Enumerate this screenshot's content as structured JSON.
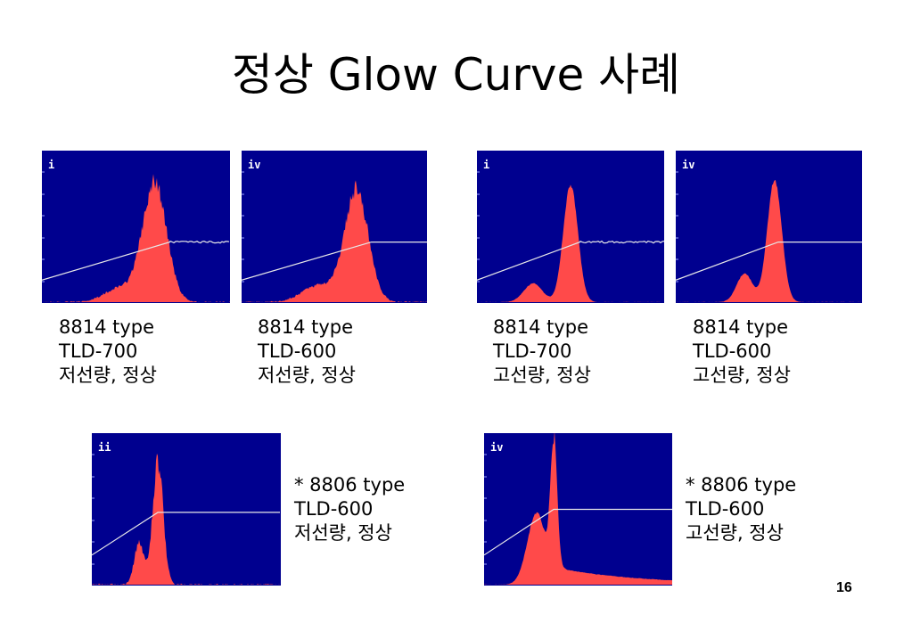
{
  "slide": {
    "title": "정상 Glow Curve 사례",
    "page_number": "16"
  },
  "colors": {
    "background": "#00008f",
    "curve_fill": "#ff4a4a",
    "temperature_line": "#e8e8e8",
    "panel_label": "#ffffff"
  },
  "chart_data": [
    {
      "type": "area",
      "panel_label": "i",
      "caption": [
        "8814 type",
        "TLD-700",
        "저선량, 정상"
      ],
      "dose": "low",
      "peaks": [
        {
          "x": 0.6,
          "height": 0.82,
          "width": 0.09
        },
        {
          "x": 0.42,
          "height": 0.1,
          "width": 0.12
        }
      ],
      "noise": 0.08,
      "temperature_ramp": {
        "start": 0.15,
        "plateau_x": 0.68,
        "plateau": 0.4
      },
      "line_wiggle": true
    },
    {
      "type": "area",
      "panel_label": "iv",
      "caption": [
        "8814 type",
        "TLD-600",
        "저선량, 정상"
      ],
      "dose": "low",
      "peaks": [
        {
          "x": 0.62,
          "height": 0.78,
          "width": 0.09
        },
        {
          "x": 0.42,
          "height": 0.12,
          "width": 0.13
        }
      ],
      "noise": 0.08,
      "temperature_ramp": {
        "start": 0.15,
        "plateau_x": 0.7,
        "plateau": 0.4
      },
      "line_wiggle": false
    },
    {
      "type": "area",
      "panel_label": "i",
      "caption": [
        "8814 type",
        "TLD-700",
        "고선량, 정상"
      ],
      "dose": "high",
      "peaks": [
        {
          "x": 0.5,
          "height": 0.82,
          "width": 0.055
        },
        {
          "x": 0.3,
          "height": 0.13,
          "width": 0.07
        }
      ],
      "noise": 0.02,
      "temperature_ramp": {
        "start": 0.15,
        "plateau_x": 0.55,
        "plateau": 0.4
      },
      "line_wiggle": true
    },
    {
      "type": "area",
      "panel_label": "iv",
      "caption": [
        "8814 type",
        "TLD-600",
        "고선량, 정상"
      ],
      "dose": "high",
      "peaks": [
        {
          "x": 0.53,
          "height": 0.85,
          "width": 0.055
        },
        {
          "x": 0.37,
          "height": 0.2,
          "width": 0.06
        }
      ],
      "noise": 0.02,
      "temperature_ramp": {
        "start": 0.15,
        "plateau_x": 0.55,
        "plateau": 0.4
      },
      "line_wiggle": false
    },
    {
      "type": "area",
      "panel_label": "ii",
      "caption": [
        "* 8806 type",
        "TLD-600",
        "저선량, 정상"
      ],
      "dose": "low",
      "peaks": [
        {
          "x": 0.35,
          "height": 0.85,
          "width": 0.04
        },
        {
          "x": 0.25,
          "height": 0.3,
          "width": 0.035
        }
      ],
      "noise": 0.1,
      "temperature_ramp": {
        "start": 0.2,
        "plateau_x": 0.35,
        "plateau": 0.48
      },
      "line_wiggle": false
    },
    {
      "type": "area",
      "panel_label": "iv",
      "caption": [
        "* 8806 type",
        "TLD-600",
        "고선량, 정상"
      ],
      "dose": "high",
      "peaks": [
        {
          "x": 0.37,
          "height": 0.9,
          "width": 0.025
        },
        {
          "x": 0.28,
          "height": 0.5,
          "width": 0.07
        }
      ],
      "noise": 0.02,
      "tail": 0.12,
      "temperature_ramp": {
        "start": 0.2,
        "plateau_x": 0.37,
        "plateau": 0.5
      },
      "line_wiggle": false
    }
  ]
}
